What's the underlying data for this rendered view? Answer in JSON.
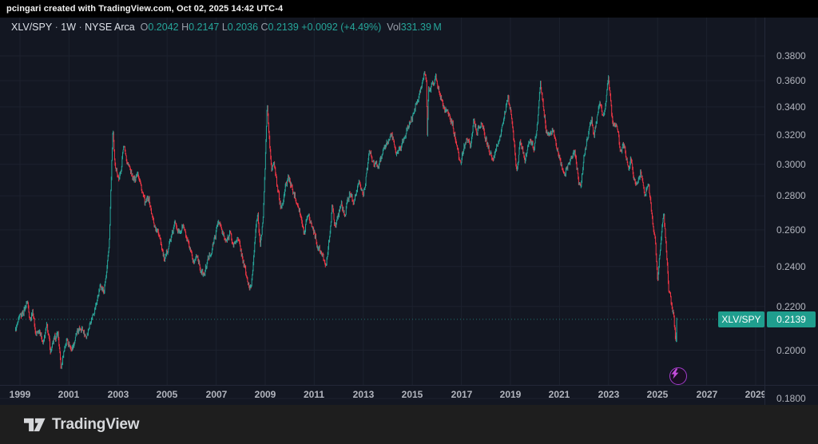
{
  "attribution": {
    "text": "pcingari created with TradingView.com, Oct 02, 2025 14:42 UTC-4"
  },
  "legend": {
    "symbol": "XLV/SPY",
    "sep1": " · ",
    "timeframe": "1W",
    "sep2": " · ",
    "exchange": "NYSE Arca",
    "open_label": "O",
    "open": "0.2042",
    "high_label": "H",
    "high": "0.2147",
    "low_label": "L",
    "low": "0.2036",
    "close_label": "C",
    "close": "0.2139",
    "change": "+0.0092 (+4.49%)",
    "vol_label": "Vol",
    "vol": "331.39 M"
  },
  "price_label": {
    "symbol": "XLV/SPY",
    "value": "0.2139"
  },
  "footer": {
    "brand": "TradingView"
  },
  "colors": {
    "background": "#131722",
    "up": "#26a69a",
    "down": "#f23645",
    "accent_label": "#1f9e8e",
    "grid": "#1c212e",
    "axis_text": "#b2b5be",
    "badge_ring": "#a33bcb",
    "badge_bolt": "#c44ddb",
    "price_line": "#26a69a"
  },
  "chart_data": {
    "type": "candlestick",
    "title": "XLV/SPY weekly ratio chart",
    "symbol": "XLV/SPY",
    "timeframe": "1W",
    "exchange": "NYSE Arca",
    "scale": "log",
    "grid": "on",
    "y_axis": {
      "ticks": [
        "0.3800",
        "0.3600",
        "0.3400",
        "0.3200",
        "0.3000",
        "0.2800",
        "0.2600",
        "0.2400",
        "0.2200",
        "0.2000",
        "0.1800"
      ],
      "tick_values": [
        0.38,
        0.36,
        0.34,
        0.32,
        0.3,
        0.28,
        0.26,
        0.24,
        0.22,
        0.2,
        0.18
      ]
    },
    "x_axis": {
      "ticks": [
        "1999",
        "2001",
        "2003",
        "2005",
        "2007",
        "2009",
        "2011",
        "2013",
        "2015",
        "2017",
        "2019",
        "2021",
        "2023",
        "2025",
        "2027",
        "2029"
      ],
      "tick_values": [
        1999,
        2001,
        2003,
        2005,
        2007,
        2009,
        2011,
        2013,
        2015,
        2017,
        2019,
        2021,
        2023,
        2025,
        2027,
        2029
      ]
    },
    "last_candle": {
      "open": 0.2042,
      "high": 0.2147,
      "low": 0.2036,
      "close": 0.2139
    },
    "current_price": 0.2139,
    "points": [
      [
        1998.8,
        0.2085
      ],
      [
        1998.95,
        0.213
      ],
      [
        1999.1,
        0.2165
      ],
      [
        1999.3,
        0.2225
      ],
      [
        1999.42,
        0.214
      ],
      [
        1999.52,
        0.218
      ],
      [
        1999.65,
        0.2065
      ],
      [
        1999.8,
        0.2095
      ],
      [
        1999.95,
        0.203
      ],
      [
        2000.1,
        0.211
      ],
      [
        2000.25,
        0.1995
      ],
      [
        2000.4,
        0.2045
      ],
      [
        2000.55,
        0.2075
      ],
      [
        2000.68,
        0.1915
      ],
      [
        2000.8,
        0.2005
      ],
      [
        2000.92,
        0.205
      ],
      [
        2001.1,
        0.2
      ],
      [
        2001.3,
        0.2065
      ],
      [
        2001.5,
        0.2105
      ],
      [
        2001.7,
        0.206
      ],
      [
        2001.9,
        0.214
      ],
      [
        2002.1,
        0.221
      ],
      [
        2002.3,
        0.231
      ],
      [
        2002.42,
        0.2265
      ],
      [
        2002.55,
        0.238
      ],
      [
        2002.65,
        0.255
      ],
      [
        2002.73,
        0.295
      ],
      [
        2002.79,
        0.325
      ],
      [
        2002.85,
        0.302
      ],
      [
        2002.95,
        0.296
      ],
      [
        2003.05,
        0.29
      ],
      [
        2003.15,
        0.3
      ],
      [
        2003.22,
        0.314
      ],
      [
        2003.35,
        0.303
      ],
      [
        2003.5,
        0.296
      ],
      [
        2003.65,
        0.289
      ],
      [
        2003.8,
        0.296
      ],
      [
        2003.95,
        0.285
      ],
      [
        2004.1,
        0.275
      ],
      [
        2004.25,
        0.279
      ],
      [
        2004.4,
        0.267
      ],
      [
        2004.55,
        0.26
      ],
      [
        2004.7,
        0.257
      ],
      [
        2004.9,
        0.242
      ],
      [
        2005.05,
        0.251
      ],
      [
        2005.2,
        0.257
      ],
      [
        2005.35,
        0.265
      ],
      [
        2005.5,
        0.258
      ],
      [
        2005.65,
        0.263
      ],
      [
        2005.8,
        0.254
      ],
      [
        2005.95,
        0.247
      ],
      [
        2006.1,
        0.242
      ],
      [
        2006.22,
        0.247
      ],
      [
        2006.35,
        0.239
      ],
      [
        2006.5,
        0.235
      ],
      [
        2006.65,
        0.243
      ],
      [
        2006.8,
        0.248
      ],
      [
        2006.95,
        0.256
      ],
      [
        2007.1,
        0.266
      ],
      [
        2007.25,
        0.258
      ],
      [
        2007.4,
        0.253
      ],
      [
        2007.55,
        0.259
      ],
      [
        2007.7,
        0.251
      ],
      [
        2007.85,
        0.256
      ],
      [
        2008.0,
        0.249
      ],
      [
        2008.15,
        0.24
      ],
      [
        2008.3,
        0.231
      ],
      [
        2008.42,
        0.228
      ],
      [
        2008.52,
        0.243
      ],
      [
        2008.62,
        0.264
      ],
      [
        2008.7,
        0.268
      ],
      [
        2008.8,
        0.251
      ],
      [
        2008.9,
        0.263
      ],
      [
        2009.0,
        0.3
      ],
      [
        2009.08,
        0.342
      ],
      [
        2009.16,
        0.318
      ],
      [
        2009.26,
        0.296
      ],
      [
        2009.36,
        0.301
      ],
      [
        2009.5,
        0.284
      ],
      [
        2009.65,
        0.272
      ],
      [
        2009.8,
        0.284
      ],
      [
        2009.95,
        0.292
      ],
      [
        2010.1,
        0.284
      ],
      [
        2010.25,
        0.279
      ],
      [
        2010.4,
        0.272
      ],
      [
        2010.52,
        0.261
      ],
      [
        2010.6,
        0.258
      ],
      [
        2010.72,
        0.27
      ],
      [
        2010.85,
        0.265
      ],
      [
        2011.0,
        0.259
      ],
      [
        2011.15,
        0.25
      ],
      [
        2011.32,
        0.246
      ],
      [
        2011.5,
        0.2415
      ],
      [
        2011.62,
        0.256
      ],
      [
        2011.72,
        0.273
      ],
      [
        2011.86,
        0.262
      ],
      [
        2012.0,
        0.27
      ],
      [
        2012.1,
        0.276
      ],
      [
        2012.22,
        0.268
      ],
      [
        2012.45,
        0.282
      ],
      [
        2012.6,
        0.277
      ],
      [
        2012.84,
        0.288
      ],
      [
        2013.0,
        0.28
      ],
      [
        2013.27,
        0.3085
      ],
      [
        2013.45,
        0.299
      ],
      [
        2013.66,
        0.3
      ],
      [
        2013.85,
        0.31
      ],
      [
        2014.0,
        0.316
      ],
      [
        2014.15,
        0.32
      ],
      [
        2014.37,
        0.307
      ],
      [
        2014.6,
        0.315
      ],
      [
        2014.8,
        0.324
      ],
      [
        2015.0,
        0.333
      ],
      [
        2015.2,
        0.345
      ],
      [
        2015.35,
        0.355
      ],
      [
        2015.5,
        0.3665
      ],
      [
        2015.57,
        0.357
      ],
      [
        2015.61,
        0.318
      ],
      [
        2015.66,
        0.352
      ],
      [
        2015.8,
        0.357
      ],
      [
        2015.95,
        0.3625
      ],
      [
        2016.1,
        0.352
      ],
      [
        2016.3,
        0.34
      ],
      [
        2016.5,
        0.334
      ],
      [
        2016.65,
        0.327
      ],
      [
        2016.8,
        0.313
      ],
      [
        2016.95,
        0.2995
      ],
      [
        2017.1,
        0.311
      ],
      [
        2017.22,
        0.317
      ],
      [
        2017.36,
        0.3125
      ],
      [
        2017.5,
        0.3295
      ],
      [
        2017.65,
        0.322
      ],
      [
        2017.8,
        0.329
      ],
      [
        2017.95,
        0.32
      ],
      [
        2018.1,
        0.311
      ],
      [
        2018.3,
        0.3015
      ],
      [
        2018.45,
        0.313
      ],
      [
        2018.6,
        0.32
      ],
      [
        2018.75,
        0.3335
      ],
      [
        2018.9,
        0.3475
      ],
      [
        2019.05,
        0.332
      ],
      [
        2019.25,
        0.2945
      ],
      [
        2019.4,
        0.315
      ],
      [
        2019.6,
        0.304
      ],
      [
        2019.8,
        0.317
      ],
      [
        2019.95,
        0.311
      ],
      [
        2020.08,
        0.323
      ],
      [
        2020.22,
        0.357
      ],
      [
        2020.32,
        0.343
      ],
      [
        2020.45,
        0.325
      ],
      [
        2020.6,
        0.319
      ],
      [
        2020.72,
        0.323
      ],
      [
        2020.85,
        0.313
      ],
      [
        2021.0,
        0.304
      ],
      [
        2021.18,
        0.292
      ],
      [
        2021.32,
        0.299
      ],
      [
        2021.48,
        0.305
      ],
      [
        2021.62,
        0.308
      ],
      [
        2021.78,
        0.29
      ],
      [
        2021.88,
        0.286
      ],
      [
        2022.0,
        0.305
      ],
      [
        2022.08,
        0.312
      ],
      [
        2022.2,
        0.323
      ],
      [
        2022.32,
        0.33
      ],
      [
        2022.42,
        0.319
      ],
      [
        2022.55,
        0.336
      ],
      [
        2022.66,
        0.3415
      ],
      [
        2022.78,
        0.3315
      ],
      [
        2022.9,
        0.345
      ],
      [
        2023.0,
        0.3625
      ],
      [
        2023.1,
        0.341
      ],
      [
        2023.18,
        0.326
      ],
      [
        2023.33,
        0.3275
      ],
      [
        2023.5,
        0.307
      ],
      [
        2023.6,
        0.3135
      ],
      [
        2023.82,
        0.2965
      ],
      [
        2023.91,
        0.3035
      ],
      [
        2024.05,
        0.291
      ],
      [
        2024.14,
        0.2865
      ],
      [
        2024.31,
        0.2955
      ],
      [
        2024.47,
        0.2805
      ],
      [
        2024.63,
        0.2895
      ],
      [
        2024.79,
        0.2645
      ],
      [
        2024.89,
        0.2565
      ],
      [
        2025.0,
        0.2315
      ],
      [
        2025.12,
        0.252
      ],
      [
        2025.25,
        0.2695
      ],
      [
        2025.35,
        0.25
      ],
      [
        2025.45,
        0.2285
      ],
      [
        2025.55,
        0.2225
      ],
      [
        2025.65,
        0.2155
      ],
      [
        2025.72,
        0.2065
      ],
      [
        2025.75,
        0.2042
      ],
      [
        2025.78,
        0.2139
      ]
    ]
  }
}
